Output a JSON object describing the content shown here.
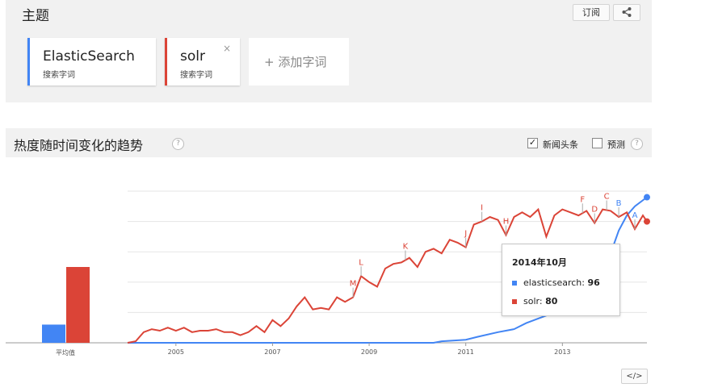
{
  "topics": {
    "title": "主题",
    "subscribe_label": "订阅",
    "share_icon": "share-icon",
    "items": [
      {
        "name": "ElasticSearch",
        "type": "搜索字词",
        "color": "#4285f4"
      },
      {
        "name": "solr",
        "type": "搜索字词",
        "color": "#db4437",
        "remove_icon": "×"
      }
    ],
    "add_label": "+ 添加字词"
  },
  "trend": {
    "title": "热度随时间变化的趋势",
    "help": "?",
    "news_label": "新闻头条",
    "news_checked": "✓",
    "forecast_label": "预测",
    "averages_label": "平均值"
  },
  "tooltip": {
    "date": "2014年10月",
    "rows": [
      {
        "name": "elasticsearch",
        "value": "96"
      },
      {
        "name": "solr",
        "value": "80"
      }
    ]
  },
  "embed_label": "</>",
  "chart_data": {
    "type": "line",
    "x_ticks": [
      "2005",
      "2007",
      "2009",
      "2011",
      "2013"
    ],
    "ylim": [
      0,
      100
    ],
    "averages": [
      {
        "series": "ElasticSearch",
        "value": 12
      },
      {
        "series": "solr",
        "value": 50
      }
    ],
    "x_range": [
      "2004-01",
      "2014-10"
    ],
    "series": [
      {
        "name": "ElasticSearch",
        "color": "#4285f4",
        "points": [
          [
            "2004-01",
            0
          ],
          [
            "2010-05",
            0
          ],
          [
            "2010-07",
            1
          ],
          [
            "2011-01",
            2
          ],
          [
            "2011-04",
            4
          ],
          [
            "2011-09",
            7
          ],
          [
            "2012-01",
            9
          ],
          [
            "2012-04",
            13
          ],
          [
            "2012-07",
            16
          ],
          [
            "2012-10",
            19
          ],
          [
            "2013-01",
            23
          ],
          [
            "2013-04",
            29
          ],
          [
            "2013-07",
            36
          ],
          [
            "2013-10",
            43
          ],
          [
            "2014-01",
            59
          ],
          [
            "2014-03",
            74
          ],
          [
            "2014-05",
            84
          ],
          [
            "2014-07",
            90
          ],
          [
            "2014-10",
            96
          ]
        ]
      },
      {
        "name": "solr",
        "color": "#db4437",
        "points": [
          [
            "2004-01",
            0
          ],
          [
            "2004-03",
            1
          ],
          [
            "2004-05",
            7
          ],
          [
            "2004-07",
            9
          ],
          [
            "2004-09",
            8
          ],
          [
            "2004-11",
            10
          ],
          [
            "2005-01",
            8
          ],
          [
            "2005-03",
            10
          ],
          [
            "2005-05",
            7
          ],
          [
            "2005-07",
            8
          ],
          [
            "2005-09",
            8
          ],
          [
            "2005-11",
            9
          ],
          [
            "2006-01",
            7
          ],
          [
            "2006-03",
            7
          ],
          [
            "2006-05",
            5
          ],
          [
            "2006-07",
            7
          ],
          [
            "2006-09",
            11
          ],
          [
            "2006-11",
            7
          ],
          [
            "2007-01",
            15
          ],
          [
            "2007-03",
            11
          ],
          [
            "2007-05",
            16
          ],
          [
            "2007-07",
            24
          ],
          [
            "2007-09",
            30
          ],
          [
            "2007-11",
            22
          ],
          [
            "2008-01",
            23
          ],
          [
            "2008-03",
            22
          ],
          [
            "2008-05",
            30
          ],
          [
            "2008-07",
            27
          ],
          [
            "2008-09",
            30
          ],
          [
            "2008-11",
            44
          ],
          [
            "2009-01",
            40
          ],
          [
            "2009-03",
            37
          ],
          [
            "2009-05",
            49
          ],
          [
            "2009-07",
            52
          ],
          [
            "2009-09",
            53
          ],
          [
            "2009-11",
            56
          ],
          [
            "2010-01",
            50
          ],
          [
            "2010-03",
            60
          ],
          [
            "2010-05",
            62
          ],
          [
            "2010-07",
            59
          ],
          [
            "2010-09",
            68
          ],
          [
            "2010-11",
            66
          ],
          [
            "2011-01",
            63
          ],
          [
            "2011-03",
            78
          ],
          [
            "2011-05",
            80
          ],
          [
            "2011-07",
            83
          ],
          [
            "2011-09",
            81
          ],
          [
            "2011-11",
            71
          ],
          [
            "2012-01",
            83
          ],
          [
            "2012-03",
            86
          ],
          [
            "2012-05",
            83
          ],
          [
            "2012-07",
            88
          ],
          [
            "2012-09",
            70
          ],
          [
            "2012-11",
            84
          ],
          [
            "2013-01",
            88
          ],
          [
            "2013-03",
            86
          ],
          [
            "2013-05",
            84
          ],
          [
            "2013-07",
            87
          ],
          [
            "2013-09",
            79
          ],
          [
            "2013-11",
            88
          ],
          [
            "2014-01",
            87
          ],
          [
            "2014-03",
            83
          ],
          [
            "2014-05",
            86
          ],
          [
            "2014-07",
            75
          ],
          [
            "2014-09",
            84
          ],
          [
            "2014-10",
            80
          ]
        ]
      }
    ],
    "annotations": [
      {
        "label": "M",
        "date": "2008-09"
      },
      {
        "label": "L",
        "date": "2008-11"
      },
      {
        "label": "K",
        "date": "2009-10"
      },
      {
        "label": "J",
        "date": "2011-01"
      },
      {
        "label": "I",
        "date": "2011-05"
      },
      {
        "label": "H",
        "date": "2011-11"
      },
      {
        "label": "F",
        "date": "2013-06"
      },
      {
        "label": "D",
        "date": "2013-09"
      },
      {
        "label": "C",
        "date": "2013-12"
      },
      {
        "label": "B",
        "date": "2014-03"
      },
      {
        "label": "A",
        "date": "2014-07"
      }
    ]
  }
}
